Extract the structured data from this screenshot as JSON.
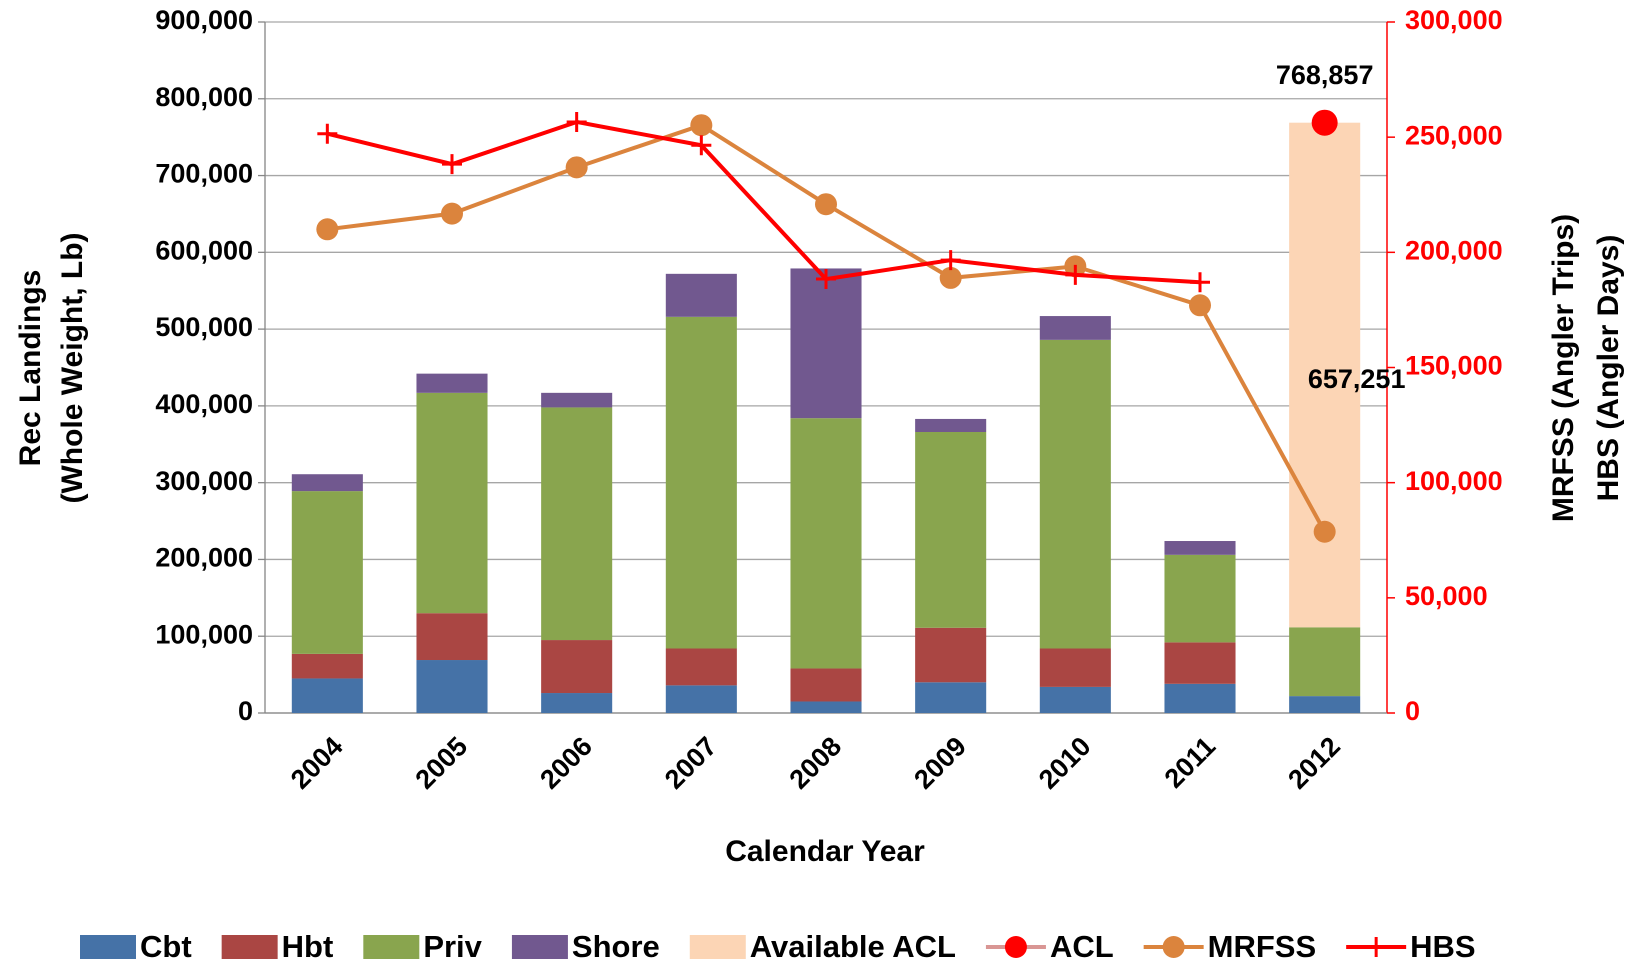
{
  "chart_data": {
    "type": "combo",
    "xlabel": "Calendar Year",
    "ylabel": [
      "Rec Landings",
      "(Whole Weight, Lb)"
    ],
    "y2label": [
      "MRFSS (Angler Trips)",
      "HBS (Angler Days)"
    ],
    "categories": [
      "2004",
      "2005",
      "2006",
      "2007",
      "2008",
      "2009",
      "2010",
      "2011",
      "2012"
    ],
    "ylim": [
      0,
      900000
    ],
    "yticks": [
      0,
      {
        "value": 100000,
        "label": "100,000"
      },
      {
        "value": 200000,
        "label": "200,000"
      },
      {
        "value": 300000,
        "label": "300,000"
      },
      {
        "value": 400000,
        "label": "400,000"
      },
      {
        "value": 500000,
        "label": "500,000"
      },
      {
        "value": 600000,
        "label": "600,000"
      },
      {
        "value": 700000,
        "label": "700,000"
      },
      {
        "value": 800000,
        "label": "800,000"
      },
      {
        "value": 900000,
        "label": "900,000"
      }
    ],
    "y2lim": [
      0,
      300000
    ],
    "y2ticks": [
      0,
      {
        "value": 50000,
        "label": "50,000"
      },
      {
        "value": 100000,
        "label": "100,000"
      },
      {
        "value": 150000,
        "label": "150,000"
      },
      {
        "value": 200000,
        "label": "200,000"
      },
      {
        "value": 250000,
        "label": "250,000"
      },
      {
        "value": 300000,
        "label": "300,000"
      }
    ],
    "y2color": "#ff0000",
    "grid": true,
    "legend": "bottom",
    "series": [
      {
        "name": "Cbt",
        "type": "bar",
        "color": "#4572a7",
        "values": [
          45000,
          69000,
          26000,
          36000,
          15000,
          40000,
          34000,
          38000,
          22000
        ]
      },
      {
        "name": "Hbt",
        "type": "bar",
        "color": "#aa4643",
        "values": [
          32000,
          61000,
          69000,
          48000,
          43000,
          71000,
          50000,
          54000,
          null
        ]
      },
      {
        "name": "Priv",
        "type": "bar",
        "color": "#89a54e",
        "values": [
          212000,
          287000,
          303000,
          432000,
          326000,
          255000,
          402000,
          114000,
          89606
        ]
      },
      {
        "name": "Shore",
        "type": "bar",
        "color": "#71588f",
        "values": [
          22000,
          25000,
          19000,
          56000,
          195000,
          17000,
          31000,
          18000,
          null
        ]
      },
      {
        "name": "Available ACL",
        "type": "bar",
        "color": "#fcd5b5",
        "values": [
          null,
          null,
          null,
          null,
          null,
          null,
          null,
          null,
          657251
        ],
        "value_labels": [
          null,
          null,
          null,
          null,
          null,
          null,
          null,
          null,
          "657,251"
        ]
      },
      {
        "name": "ACL",
        "type": "line",
        "marker": "circle",
        "color": "#ff0000",
        "line_color": "#d99694",
        "values": [
          null,
          null,
          null,
          null,
          null,
          null,
          null,
          null,
          768857
        ],
        "value_labels": [
          null,
          null,
          null,
          null,
          null,
          null,
          null,
          null,
          "768,857"
        ]
      },
      {
        "name": "MRFSS",
        "type": "line",
        "marker": "circle",
        "axis": "y2",
        "color": "#db843d",
        "values": [
          210000,
          216800,
          236900,
          255200,
          220900,
          188900,
          193900,
          177000,
          78700
        ]
      },
      {
        "name": "HBS",
        "type": "line",
        "marker": "plus",
        "axis": "y2",
        "color": "#ff0000",
        "values": [
          251500,
          238300,
          256600,
          246500,
          188400,
          196600,
          190200,
          187000,
          null
        ]
      }
    ]
  }
}
